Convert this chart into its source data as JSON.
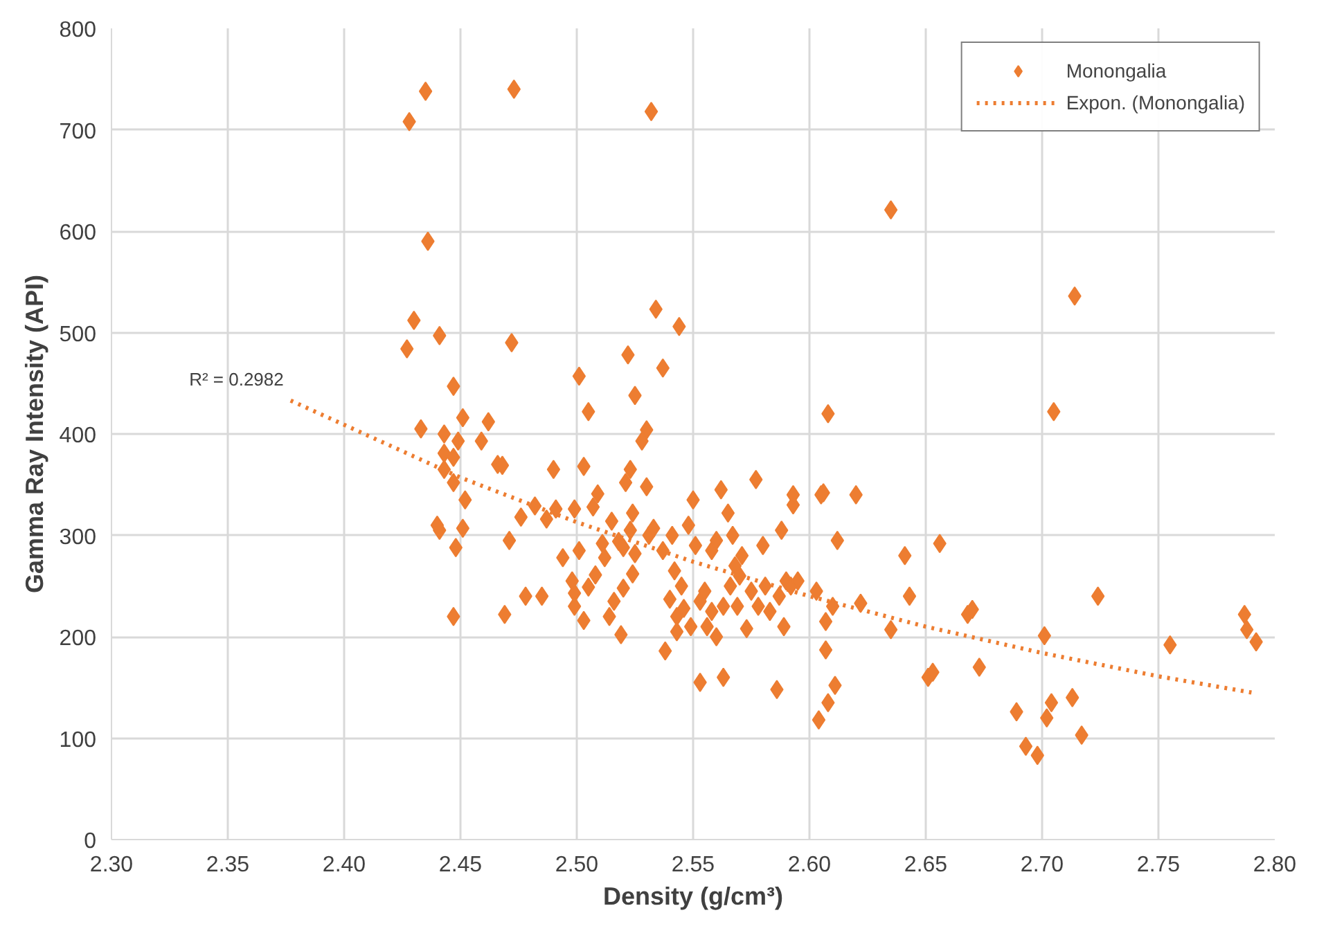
{
  "chart_data": {
    "type": "scatter",
    "xlabel": "Density (g/cm³)",
    "ylabel": "Gamma Ray Intensity (API)",
    "xlim": [
      2.3,
      2.8
    ],
    "ylim": [
      0,
      800
    ],
    "xticks": [
      {
        "value": 2.3,
        "label": "2.30"
      },
      {
        "value": 2.35,
        "label": "2.35"
      },
      {
        "value": 2.4,
        "label": "2.40"
      },
      {
        "value": 2.45,
        "label": "2.45"
      },
      {
        "value": 2.5,
        "label": "2.50"
      },
      {
        "value": 2.55,
        "label": "2.55"
      },
      {
        "value": 2.6,
        "label": "2.60"
      },
      {
        "value": 2.65,
        "label": "2.65"
      },
      {
        "value": 2.7,
        "label": "2.70"
      },
      {
        "value": 2.75,
        "label": "2.75"
      },
      {
        "value": 2.8,
        "label": "2.80"
      }
    ],
    "yticks": [
      0,
      100,
      200,
      300,
      400,
      500,
      600,
      700,
      800
    ],
    "grid": true,
    "legend": "top right",
    "annotations": [
      {
        "text": "R² = 0.2982",
        "x": 2.377,
        "y": 433
      }
    ],
    "series": [
      {
        "name": "Monongalia",
        "color": "#ed7d31",
        "marker": "diamond",
        "x": [
          2.428,
          2.435,
          2.473,
          2.532,
          2.436,
          2.635,
          2.714,
          2.43,
          2.441,
          2.472,
          2.427,
          2.534,
          2.544,
          2.522,
          2.537,
          2.501,
          2.525,
          2.447,
          2.433,
          2.451,
          2.462,
          2.443,
          2.449,
          2.459,
          2.443,
          2.447,
          2.443,
          2.447,
          2.452,
          2.466,
          2.468,
          2.505,
          2.53,
          2.528,
          2.608,
          2.705,
          2.44,
          2.441,
          2.451,
          2.448,
          2.447,
          2.469,
          2.471,
          2.476,
          2.482,
          2.478,
          2.485,
          2.487,
          2.49,
          2.491,
          2.494,
          2.499,
          2.498,
          2.499,
          2.499,
          2.501,
          2.503,
          2.503,
          2.505,
          2.507,
          2.508,
          2.509,
          2.511,
          2.512,
          2.514,
          2.515,
          2.516,
          2.518,
          2.519,
          2.52,
          2.52,
          2.521,
          2.523,
          2.523,
          2.524,
          2.524,
          2.525,
          2.53,
          2.531,
          2.533,
          2.537,
          2.538,
          2.54,
          2.541,
          2.542,
          2.543,
          2.543,
          2.545,
          2.546,
          2.548,
          2.549,
          2.55,
          2.551,
          2.553,
          2.553,
          2.555,
          2.556,
          2.558,
          2.558,
          2.56,
          2.56,
          2.562,
          2.563,
          2.563,
          2.565,
          2.566,
          2.567,
          2.568,
          2.569,
          2.57,
          2.571,
          2.573,
          2.575,
          2.577,
          2.578,
          2.58,
          2.581,
          2.583,
          2.586,
          2.587,
          2.588,
          2.589,
          2.59,
          2.592,
          2.593,
          2.593,
          2.595,
          2.603,
          2.604,
          2.605,
          2.606,
          2.607,
          2.607,
          2.608,
          2.61,
          2.611,
          2.612,
          2.62,
          2.622,
          2.635,
          2.641,
          2.643,
          2.651,
          2.653,
          2.656,
          2.668,
          2.67,
          2.673,
          2.689,
          2.693,
          2.698,
          2.701,
          2.702,
          2.704,
          2.713,
          2.717,
          2.724,
          2.755,
          2.787,
          2.788,
          2.792
        ],
        "values": [
          708,
          738,
          740,
          718,
          590,
          621,
          536,
          512,
          497,
          490,
          484,
          523,
          506,
          478,
          465,
          457,
          438,
          447,
          405,
          416,
          412,
          400,
          393,
          393,
          381,
          377,
          365,
          352,
          335,
          370,
          369,
          422,
          404,
          393,
          420,
          422,
          310,
          305,
          307,
          288,
          220,
          222,
          295,
          318,
          329,
          240,
          240,
          316,
          365,
          326,
          278,
          326,
          255,
          243,
          230,
          285,
          216,
          368,
          249,
          328,
          261,
          341,
          292,
          278,
          220,
          314,
          235,
          294,
          202,
          248,
          288,
          352,
          365,
          305,
          322,
          262,
          282,
          348,
          300,
          307,
          285,
          186,
          237,
          300,
          265,
          205,
          220,
          250,
          228,
          310,
          210,
          335,
          290,
          155,
          235,
          245,
          210,
          225,
          285,
          295,
          200,
          345,
          160,
          230,
          322,
          250,
          300,
          270,
          230,
          260,
          280,
          208,
          245,
          355,
          230,
          290,
          250,
          225,
          148,
          240,
          305,
          210,
          255,
          250,
          330,
          340,
          255,
          245,
          118,
          340,
          342,
          215,
          187,
          135,
          230,
          152,
          295,
          340,
          233,
          207,
          280,
          240,
          160,
          165,
          292,
          222,
          227,
          170,
          126,
          92,
          83,
          201,
          120,
          135,
          140,
          103,
          240,
          192,
          222,
          207,
          195
        ]
      },
      {
        "name": "Expon. (Monongalia)",
        "color": "#ed7d31",
        "type": "line",
        "line_style": "dotted",
        "x": [
          2.377,
          2.45,
          2.5,
          2.55,
          2.6,
          2.65,
          2.7,
          2.75,
          2.79
        ],
        "values": [
          433,
          357,
          313,
          274,
          240,
          210,
          184,
          161,
          145
        ]
      }
    ]
  }
}
